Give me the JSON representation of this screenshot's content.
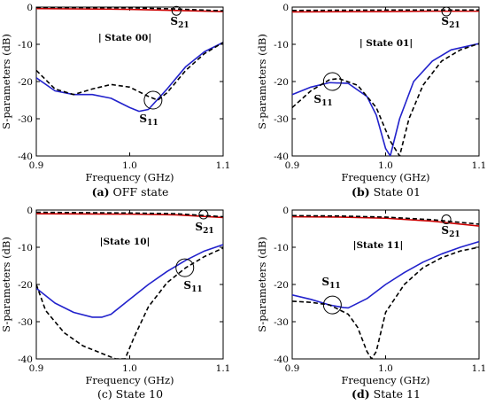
{
  "chart_data": [
    {
      "type": "line",
      "caption_tag": "(a)",
      "caption_text": " OFF state",
      "state_label": "| State 00|",
      "xlabel": "Frequency (GHz)",
      "ylabel": "S-parameters (dB)",
      "xlim": [
        0.9,
        1.1
      ],
      "ylim": [
        -40,
        0
      ],
      "xticks": [
        "0.9",
        "1.0",
        "1.1"
      ],
      "yticks": [
        "0",
        "-10",
        "-20",
        "-30",
        "-40"
      ],
      "s21_label": "S",
      "s21_sub": "21",
      "s11_label": "S",
      "s11_sub": "11",
      "s21_marker": [
        1.05,
        -1.0
      ],
      "s11_marker": [
        1.025,
        -25.0
      ],
      "series": [
        {
          "color": "#cc0000",
          "dash": false,
          "x": [
            0.9,
            1.0,
            1.05,
            1.1
          ],
          "y": [
            -0.4,
            -0.6,
            -0.9,
            -1.2
          ]
        },
        {
          "color": "#000000",
          "dash": true,
          "x": [
            0.9,
            1.0,
            1.05,
            1.1
          ],
          "y": [
            -0.1,
            -0.2,
            -0.5,
            -1.0
          ]
        },
        {
          "color": "#2222cc",
          "dash": false,
          "x": [
            0.9,
            0.92,
            0.94,
            0.96,
            0.98,
            1.0,
            1.01,
            1.02,
            1.04,
            1.06,
            1.08,
            1.1
          ],
          "y": [
            -19,
            -22.5,
            -23.5,
            -23.5,
            -24.5,
            -27,
            -28,
            -27.5,
            -22,
            -16,
            -12,
            -9.5
          ]
        },
        {
          "color": "#000000",
          "dash": true,
          "x": [
            0.9,
            0.92,
            0.94,
            0.96,
            0.98,
            1.0,
            1.02,
            1.03,
            1.04,
            1.06,
            1.08,
            1.1
          ],
          "y": [
            -17,
            -22,
            -23.5,
            -22,
            -20.8,
            -21.5,
            -24,
            -25,
            -23,
            -17,
            -12.5,
            -9.5
          ]
        }
      ]
    },
    {
      "type": "line",
      "caption_tag": "(b)",
      "caption_text": " State 01",
      "state_label": "| State 01|",
      "xlabel": "Frequency (GHz)",
      "ylabel": "S-parameters (dB)",
      "xlim": [
        0.9,
        1.1
      ],
      "ylim": [
        -40,
        0
      ],
      "xticks": [
        "0.9",
        "1.0",
        "1.1"
      ],
      "yticks": [
        "0",
        "-10",
        "-20",
        "-30",
        "-40"
      ],
      "s21_label": "S",
      "s21_sub": "21",
      "s11_label": "S",
      "s11_sub": "11",
      "s21_marker": [
        1.065,
        -1.2
      ],
      "s11_marker": [
        0.943,
        -20.0
      ],
      "series": [
        {
          "color": "#cc0000",
          "dash": false,
          "x": [
            0.9,
            1.0,
            1.05,
            1.1
          ],
          "y": [
            -1.3,
            -1.2,
            -1.1,
            -1.1
          ]
        },
        {
          "color": "#000000",
          "dash": true,
          "x": [
            0.9,
            1.0,
            1.05,
            1.1
          ],
          "y": [
            -0.9,
            -0.8,
            -0.8,
            -0.8
          ]
        },
        {
          "color": "#2222cc",
          "dash": false,
          "x": [
            0.9,
            0.92,
            0.94,
            0.96,
            0.98,
            0.99,
            1.0,
            1.005,
            1.015,
            1.03,
            1.05,
            1.07,
            1.1
          ],
          "y": [
            -23.5,
            -21.5,
            -20.3,
            -20.5,
            -24,
            -29,
            -38,
            -40,
            -30,
            -20,
            -14.5,
            -11.5,
            -9.8
          ]
        },
        {
          "color": "#000000",
          "dash": true,
          "x": [
            0.9,
            0.92,
            0.94,
            0.95,
            0.97,
            0.99,
            1.005,
            1.015,
            1.025,
            1.04,
            1.06,
            1.08,
            1.1
          ],
          "y": [
            -27,
            -22.5,
            -19.5,
            -19.2,
            -21,
            -27,
            -36,
            -40,
            -30,
            -21,
            -14.5,
            -11.5,
            -9.8
          ]
        }
      ]
    },
    {
      "type": "line",
      "caption_tag": "",
      "caption_text": "(c) State 10",
      "state_label": "|State 10|",
      "xlabel": "Frequency (GHz)",
      "ylabel": "S-parameters (dB)",
      "xlim": [
        0.9,
        1.1
      ],
      "ylim": [
        -40,
        0
      ],
      "xticks": [
        "0.9",
        "1.0",
        "1.1"
      ],
      "yticks": [
        "0",
        "-10",
        "-20",
        "-30",
        "-40"
      ],
      "s21_label": "S",
      "s21_sub": "21",
      "s11_label": "S",
      "s11_sub": "11",
      "s21_marker": [
        1.079,
        -1.2
      ],
      "s11_marker": [
        1.059,
        -15.5
      ],
      "series": [
        {
          "color": "#cc0000",
          "dash": false,
          "x": [
            0.9,
            1.0,
            1.05,
            1.1
          ],
          "y": [
            -1.0,
            -1.1,
            -1.3,
            -2.0
          ]
        },
        {
          "color": "#000000",
          "dash": true,
          "x": [
            0.9,
            1.0,
            1.05,
            1.1
          ],
          "y": [
            -0.6,
            -0.8,
            -1.0,
            -1.8
          ]
        },
        {
          "color": "#2222cc",
          "dash": false,
          "x": [
            0.9,
            0.92,
            0.94,
            0.96,
            0.97,
            0.98,
            1.0,
            1.02,
            1.04,
            1.06,
            1.08,
            1.1
          ],
          "y": [
            -21,
            -25,
            -27.5,
            -28.8,
            -28.8,
            -28,
            -24,
            -20,
            -16.5,
            -13.5,
            -11,
            -9.3
          ]
        },
        {
          "color": "#000000",
          "dash": true,
          "x": [
            0.9,
            0.91,
            0.93,
            0.95,
            0.97,
            0.985,
            0.995,
            1.005,
            1.02,
            1.04,
            1.06,
            1.08,
            1.1
          ],
          "y": [
            -20,
            -27,
            -33,
            -36.5,
            -38.5,
            -40,
            -40,
            -34,
            -26,
            -19.5,
            -15.5,
            -12.5,
            -10.2
          ]
        }
      ]
    },
    {
      "type": "line",
      "caption_tag": "(d)",
      "caption_text": " State 11",
      "state_label": "|State 11|",
      "xlabel": "Frequency (GHz)",
      "ylabel": "S-parameters (dB)",
      "xlim": [
        0.9,
        1.1
      ],
      "ylim": [
        -40,
        0
      ],
      "xticks": [
        "0.9",
        "1.0",
        "1.1"
      ],
      "yticks": [
        "0",
        "-10",
        "-20",
        "-30",
        "-40"
      ],
      "s21_label": "S",
      "s21_sub": "21",
      "s11_label": "S",
      "s11_sub": "11",
      "s21_marker": [
        1.065,
        -2.5
      ],
      "s11_marker": [
        0.943,
        -25.5
      ],
      "series": [
        {
          "color": "#cc0000",
          "dash": false,
          "x": [
            0.9,
            0.95,
            1.0,
            1.05,
            1.1
          ],
          "y": [
            -1.8,
            -1.9,
            -2.2,
            -3.0,
            -4.3
          ]
        },
        {
          "color": "#000000",
          "dash": true,
          "x": [
            0.9,
            0.95,
            1.0,
            1.05,
            1.1
          ],
          "y": [
            -1.5,
            -1.6,
            -1.9,
            -2.6,
            -3.8
          ]
        },
        {
          "color": "#2222cc",
          "dash": false,
          "x": [
            0.9,
            0.92,
            0.94,
            0.955,
            0.96,
            0.98,
            1.0,
            1.02,
            1.04,
            1.06,
            1.08,
            1.1
          ],
          "y": [
            -22.8,
            -24,
            -25.5,
            -26.2,
            -26.3,
            -23.8,
            -20,
            -16.8,
            -14,
            -11.8,
            -10,
            -8.5
          ]
        },
        {
          "color": "#000000",
          "dash": true,
          "x": [
            0.9,
            0.92,
            0.94,
            0.96,
            0.97,
            0.98,
            0.985,
            0.99,
            1.0,
            1.02,
            1.04,
            1.06,
            1.08,
            1.1
          ],
          "y": [
            -24.5,
            -24.8,
            -25.5,
            -28,
            -31.5,
            -38,
            -40,
            -38,
            -27.5,
            -20,
            -15.5,
            -12.8,
            -11,
            -10
          ]
        }
      ]
    }
  ]
}
